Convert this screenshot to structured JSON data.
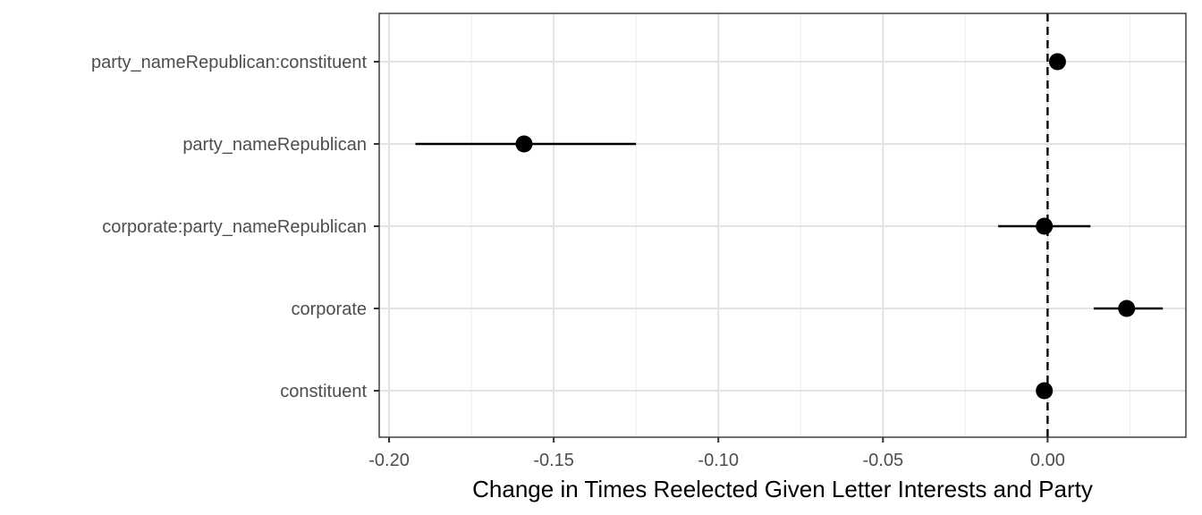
{
  "chart_data": {
    "type": "scatter",
    "title": "",
    "xlabel": "Change in Times Reelected Given Letter Interests and Party",
    "ylabel": "",
    "xlim": [
      -0.203,
      0.042
    ],
    "x_ticks": [
      -0.2,
      -0.15,
      -0.1,
      -0.05,
      0.0
    ],
    "x_tick_labels": [
      "-0.20",
      "-0.15",
      "-0.10",
      "-0.05",
      "0.00"
    ],
    "reference_line": 0.0,
    "grid": true,
    "categories": [
      "party_nameRepublican:constituent",
      "party_nameRepublican",
      "corporate:party_nameRepublican",
      "corporate",
      "constituent"
    ],
    "points": [
      {
        "term": "party_nameRepublican:constituent",
        "estimate": 0.003,
        "low": 0.003,
        "high": 0.003
      },
      {
        "term": "party_nameRepublican",
        "estimate": -0.159,
        "low": -0.192,
        "high": -0.125
      },
      {
        "term": "corporate:party_nameRepublican",
        "estimate": -0.001,
        "low": -0.015,
        "high": 0.013
      },
      {
        "term": "corporate",
        "estimate": 0.024,
        "low": 0.014,
        "high": 0.035
      },
      {
        "term": "constituent",
        "estimate": -0.001,
        "low": -0.001,
        "high": -0.001
      }
    ]
  }
}
